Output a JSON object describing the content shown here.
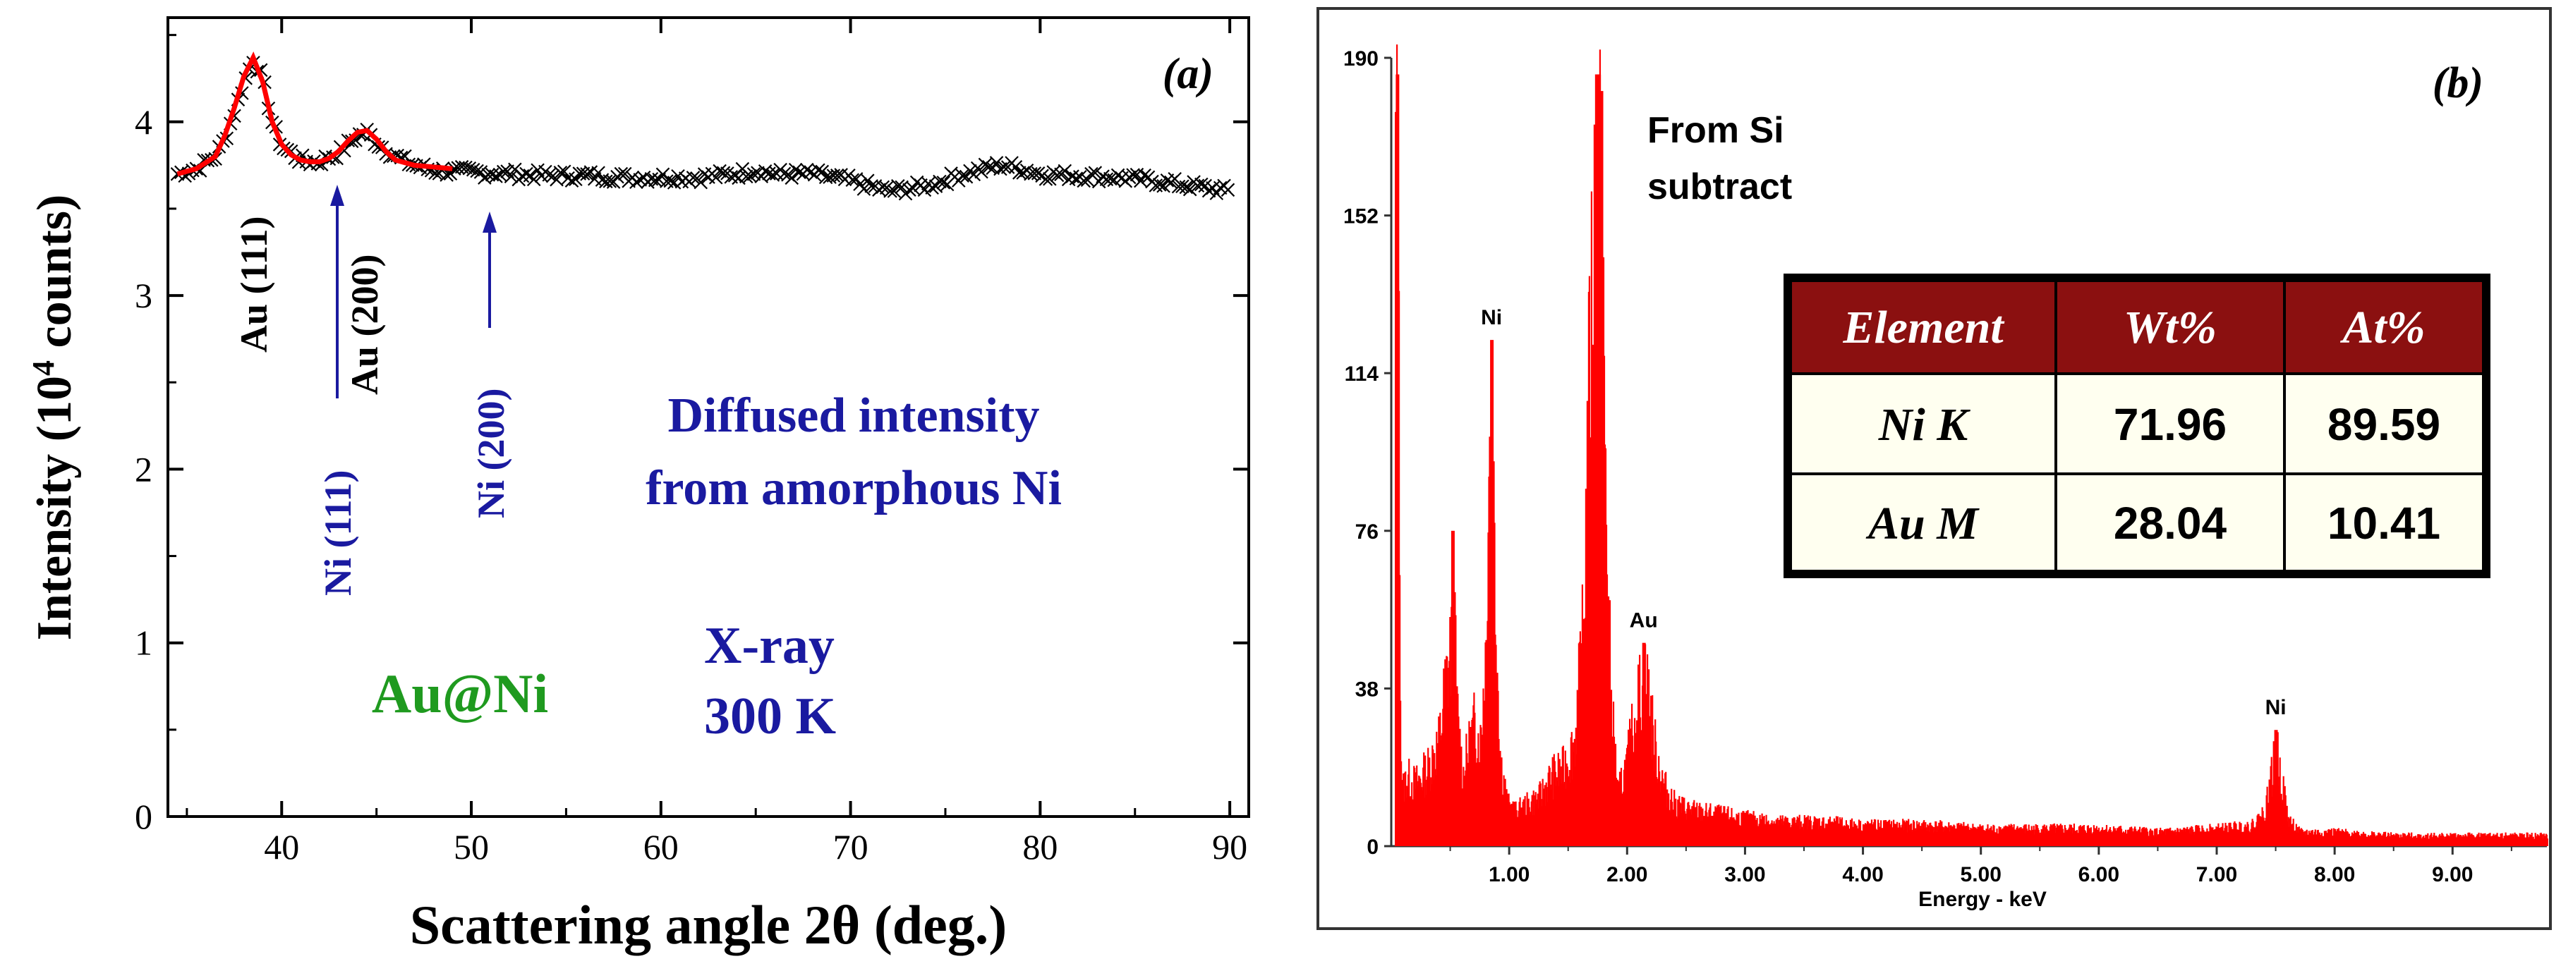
{
  "chart_data": [
    {
      "type": "scatter",
      "panel_label": "(a)",
      "xlabel": "Scattering angle 2θ (deg.)",
      "ylabel_main": "Intensity (10",
      "ylabel_sup": "4",
      "ylabel_tail": " counts)",
      "xlim": [
        34,
        91
      ],
      "ylim": [
        0,
        4.6
      ],
      "xticks": [
        40,
        50,
        60,
        70,
        80,
        90
      ],
      "xtick_labels": [
        "40",
        "50",
        "60",
        "70",
        "80",
        "90"
      ],
      "yticks": [
        0,
        1,
        2,
        3,
        4
      ],
      "ytick_labels": [
        "0",
        "1",
        "2",
        "3",
        "4"
      ],
      "series": [
        {
          "name": "data",
          "marker": "x",
          "color": "#000000",
          "x": [
            34.5,
            35.5,
            36.5,
            37.0,
            37.5,
            38.0,
            38.5,
            39.0,
            39.5,
            40.0,
            40.5,
            41.0,
            41.5,
            42.0,
            43.0,
            44.0,
            44.5,
            45.0,
            46.0,
            47.0,
            48.0,
            50.0,
            52.0,
            54.0,
            56.0,
            58.0,
            60.0,
            62.0,
            64.0,
            65.0,
            66.0,
            68.0,
            70.0,
            72.0,
            74.0,
            76.0,
            77.5,
            78.0,
            79.0,
            80.0,
            82.0,
            84.0,
            86.0,
            88.0,
            90.0
          ],
          "y": [
            3.7,
            3.73,
            3.8,
            3.9,
            4.05,
            4.22,
            4.36,
            4.25,
            4.0,
            3.86,
            3.82,
            3.78,
            3.77,
            3.77,
            3.82,
            3.92,
            3.94,
            3.88,
            3.8,
            3.75,
            3.72,
            3.71,
            3.7,
            3.69,
            3.69,
            3.68,
            3.68,
            3.68,
            3.7,
            3.72,
            3.7,
            3.7,
            3.66,
            3.6,
            3.63,
            3.7,
            3.74,
            3.75,
            3.73,
            3.7,
            3.69,
            3.68,
            3.66,
            3.63,
            3.6
          ]
        },
        {
          "name": "fit",
          "line": true,
          "color": "#ff0000",
          "x": [
            34.5,
            35.5,
            36.5,
            37.0,
            37.5,
            38.0,
            38.5,
            39.0,
            39.5,
            40.0,
            40.5,
            41.0,
            41.5,
            42.0,
            42.5,
            43.0,
            43.5,
            44.0,
            44.5,
            45.0,
            45.5,
            46.0,
            47.0,
            48.0,
            49.0
          ],
          "y": [
            3.7,
            3.73,
            3.8,
            3.92,
            4.08,
            4.26,
            4.37,
            4.23,
            4.0,
            3.87,
            3.81,
            3.78,
            3.77,
            3.77,
            3.79,
            3.83,
            3.89,
            3.94,
            3.95,
            3.9,
            3.83,
            3.78,
            3.75,
            3.74,
            3.73
          ]
        }
      ],
      "annotations": {
        "au111": "Au (111)",
        "au200": "Au (200)",
        "ni111": "Ni (111)",
        "ni200": "Ni (200)",
        "diffused_1": "Diffused intensity",
        "diffused_2": "from amorphous Ni",
        "sample": "Au@Ni",
        "xray_1": "X-ray",
        "xray_2": "300 K"
      }
    },
    {
      "type": "bar",
      "panel_label": "(b)",
      "xlabel": "Energy - keV",
      "xlim": [
        0,
        9.8
      ],
      "ylim": [
        0,
        190
      ],
      "xticks": [
        1,
        2,
        3,
        4,
        5,
        6,
        7,
        8,
        9
      ],
      "xtick_labels": [
        "1.00",
        "2.00",
        "3.00",
        "4.00",
        "5.00",
        "6.00",
        "7.00",
        "8.00",
        "9.00"
      ],
      "yticks": [
        0,
        38,
        76,
        114,
        152,
        190
      ],
      "ytick_labels": [
        "0",
        "38",
        "76",
        "114",
        "152",
        "190"
      ],
      "color": "#ff0000",
      "spectrum": {
        "energy": [
          0.05,
          0.08,
          0.12,
          0.2,
          0.3,
          0.4,
          0.45,
          0.5,
          0.52,
          0.55,
          0.6,
          0.65,
          0.7,
          0.75,
          0.8,
          0.82,
          0.85,
          0.88,
          0.92,
          0.98,
          1.05,
          1.15,
          1.25,
          1.35,
          1.45,
          1.55,
          1.62,
          1.68,
          1.72,
          1.75,
          1.78,
          1.82,
          1.86,
          1.92,
          2.0,
          2.05,
          2.1,
          2.14,
          2.18,
          2.22,
          2.3,
          2.4,
          2.6,
          2.8,
          3.0,
          3.3,
          3.6,
          4.0,
          4.5,
          5.0,
          5.5,
          6.0,
          6.5,
          7.0,
          7.3,
          7.4,
          7.45,
          7.5,
          7.55,
          7.6,
          7.7,
          8.0,
          8.5,
          9.0,
          9.5,
          9.8
        ],
        "counts": [
          186,
          15,
          20,
          18,
          22,
          30,
          45,
          58,
          76,
          40,
          20,
          28,
          35,
          30,
          60,
          112,
          122,
          70,
          25,
          12,
          10,
          12,
          14,
          20,
          22,
          30,
          60,
          140,
          186,
          186,
          170,
          90,
          40,
          15,
          25,
          35,
          44,
          48,
          44,
          30,
          18,
          12,
          10,
          9,
          8,
          7,
          7,
          6,
          6,
          5,
          5,
          5,
          4,
          5,
          6,
          10,
          18,
          28,
          18,
          8,
          4,
          4,
          3,
          3,
          3,
          3
        ]
      },
      "peak_labels": [
        {
          "text": "Ni",
          "energy": 0.85,
          "count": 122
        },
        {
          "text": "Au",
          "energy": 2.14,
          "count": 49
        },
        {
          "text": "Ni",
          "energy": 7.5,
          "count": 28
        }
      ],
      "annotation_1": "From Si",
      "annotation_2": "subtract",
      "table": {
        "headers": [
          "Element",
          "Wt%",
          "At%"
        ],
        "rows": [
          [
            "Ni K",
            "71.96",
            "89.59"
          ],
          [
            "Au M",
            "28.04",
            "10.41"
          ]
        ]
      }
    }
  ],
  "colors": {
    "blue_label": "#1a1aa0",
    "green_label": "#1f9a1f",
    "fit": "#ff0000",
    "header_bg": "#8b1010",
    "cell_bg": "#fffff0"
  }
}
